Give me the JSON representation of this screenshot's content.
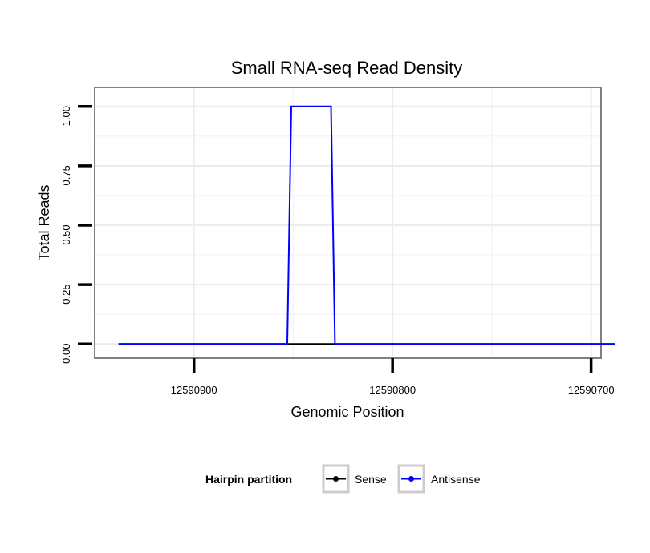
{
  "chart_data": {
    "type": "line",
    "title": "Small RNA-seq Read Density",
    "xlabel": "Genomic Position",
    "ylabel": "Total Reads",
    "x_reversed": true,
    "xlim": [
      12590950,
      12590695
    ],
    "ylim": [
      -0.06,
      1.08
    ],
    "x_ticks": [
      12590900,
      12590800,
      12590700
    ],
    "x_tick_labels": [
      "12590900",
      "12590800",
      "12590700"
    ],
    "y_ticks": [
      0,
      0.25,
      0.5,
      0.75,
      1.0
    ],
    "y_tick_labels": [
      "0.00",
      "0.25",
      "0.50",
      "0.75",
      "1.00"
    ],
    "grid": true,
    "series": [
      {
        "name": "Sense",
        "color": "#000000",
        "x": [
          12590938,
          12590688
        ],
        "y": [
          0,
          0
        ]
      },
      {
        "name": "Antisense",
        "color": "#0000ff",
        "x": [
          12590938,
          12590853,
          12590851,
          12590831,
          12590829,
          12590688
        ],
        "y": [
          0,
          0,
          1,
          1,
          0,
          0
        ]
      }
    ],
    "legend": {
      "title": "Hairpin partition",
      "position": "bottom",
      "entries": [
        "Sense",
        "Antisense"
      ]
    }
  }
}
